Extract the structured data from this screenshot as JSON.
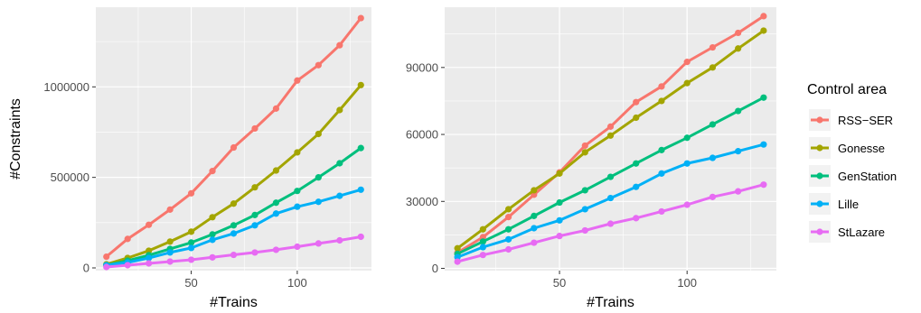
{
  "legend": {
    "title": "Control area",
    "entries": [
      {
        "name": "RSS−SER",
        "color": "#F8766D"
      },
      {
        "name": "Gonesse",
        "color": "#A3A500"
      },
      {
        "name": "GenStation",
        "color": "#00BF7D"
      },
      {
        "name": "Lille",
        "color": "#00B0F6"
      },
      {
        "name": "StLazare",
        "color": "#E76BF3"
      }
    ]
  },
  "chart_data": [
    {
      "type": "line",
      "xlabel": "#Trains",
      "ylabel": "#Constraints",
      "xlim": [
        5,
        135
      ],
      "ylim": [
        -15000,
        1440000
      ],
      "xticks": [
        50,
        100
      ],
      "xtick_labels": [
        "50",
        "100"
      ],
      "yticks": [
        0,
        500000,
        1000000
      ],
      "ytick_labels": [
        "0",
        "500000",
        "1000000"
      ],
      "grid": true,
      "x": [
        10,
        20,
        30,
        40,
        50,
        60,
        70,
        80,
        90,
        100,
        110,
        120,
        130
      ],
      "series": [
        {
          "name": "RSS−SER",
          "color": "#F8766D",
          "values": [
            62000,
            160000,
            238000,
            322000,
            412000,
            535000,
            665000,
            770000,
            880000,
            1035000,
            1120000,
            1230000,
            1380000
          ]
        },
        {
          "name": "Gonesse",
          "color": "#A3A500",
          "values": [
            20000,
            55000,
            95000,
            145000,
            200000,
            280000,
            355000,
            445000,
            538000,
            638000,
            740000,
            872000,
            1010000
          ]
        },
        {
          "name": "GenStation",
          "color": "#00BF7D",
          "values": [
            15000,
            40000,
            70000,
            105000,
            140000,
            185000,
            235000,
            292000,
            360000,
            425000,
            500000,
            578000,
            662000
          ]
        },
        {
          "name": "Lille",
          "color": "#00B0F6",
          "values": [
            15000,
            30000,
            55000,
            85000,
            110000,
            155000,
            190000,
            235000,
            300000,
            338000,
            365000,
            398000,
            432000
          ]
        },
        {
          "name": "StLazare",
          "color": "#E76BF3",
          "values": [
            5000,
            15000,
            25000,
            35000,
            45000,
            58000,
            72000,
            85000,
            100000,
            117000,
            135000,
            152000,
            172000
          ]
        }
      ]
    },
    {
      "type": "line",
      "xlabel": "#Trains",
      "ylabel": "",
      "xlim": [
        5,
        135
      ],
      "ylim": [
        -1000,
        117000
      ],
      "xticks": [
        50,
        100
      ],
      "xtick_labels": [
        "50",
        "100"
      ],
      "yticks": [
        0,
        30000,
        60000,
        90000
      ],
      "ytick_labels": [
        "0",
        "30000",
        "60000",
        "90000"
      ],
      "grid": true,
      "x": [
        10,
        20,
        30,
        40,
        50,
        60,
        70,
        80,
        90,
        100,
        110,
        120,
        130
      ],
      "series": [
        {
          "name": "RSS−SER",
          "color": "#F8766D",
          "values": [
            7000,
            14000,
            23000,
            33000,
            43000,
            55000,
            63500,
            74500,
            81500,
            92500,
            99000,
            105500,
            113000
          ]
        },
        {
          "name": "Gonesse",
          "color": "#A3A500",
          "values": [
            9000,
            17500,
            26500,
            35000,
            42500,
            52000,
            59500,
            67500,
            75000,
            83000,
            90000,
            98500,
            106500
          ]
        },
        {
          "name": "GenStation",
          "color": "#00BF7D",
          "values": [
            6500,
            12000,
            17500,
            23500,
            29500,
            35000,
            41000,
            47000,
            53000,
            58500,
            64500,
            70500,
            76500
          ]
        },
        {
          "name": "Lille",
          "color": "#00B0F6",
          "values": [
            5000,
            9500,
            13000,
            18000,
            21500,
            26500,
            31500,
            36500,
            42500,
            47000,
            49500,
            52500,
            55500
          ]
        },
        {
          "name": "StLazare",
          "color": "#E76BF3",
          "values": [
            3000,
            6000,
            8500,
            11500,
            14500,
            17000,
            20000,
            22500,
            25500,
            28500,
            32000,
            34500,
            37500
          ]
        }
      ]
    }
  ]
}
